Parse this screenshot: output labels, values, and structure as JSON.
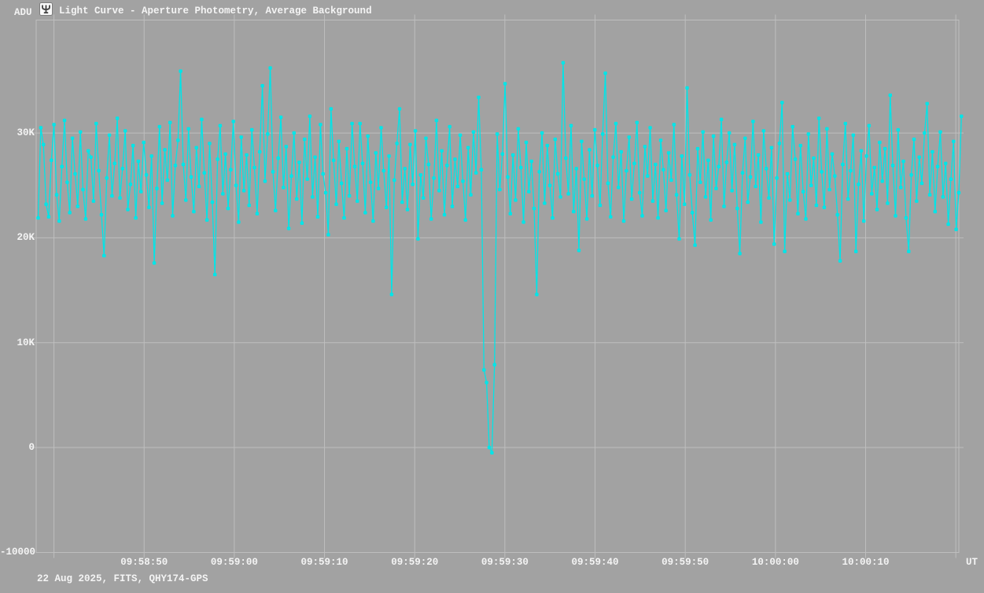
{
  "header": {
    "app_icon": "tangra-app-icon",
    "title": "Light Curve - Aperture Photometry, Average Background"
  },
  "footer": {
    "info": "22 Aug 2025, FITS, QHY174-GPS"
  },
  "colors": {
    "background": "#a2a2a2",
    "grid": "#bebebe",
    "series": "#00e5e8",
    "text": "#f4f4f4"
  },
  "chart_data": {
    "type": "line",
    "title": "Light Curve - Aperture Photometry, Average Background",
    "grid": true,
    "legend": false,
    "x_axis": {
      "unit_label": "UT",
      "ticks": [
        {
          "label": "09:58:50",
          "offset_s": 11.75
        },
        {
          "label": "09:59:00",
          "offset_s": 21.75
        },
        {
          "label": "09:59:10",
          "offset_s": 31.75
        },
        {
          "label": "09:59:20",
          "offset_s": 41.75
        },
        {
          "label": "09:59:30",
          "offset_s": 51.75
        },
        {
          "label": "09:59:40",
          "offset_s": 61.75
        },
        {
          "label": "09:59:50",
          "offset_s": 71.75
        },
        {
          "label": "10:00:00",
          "offset_s": 81.75
        },
        {
          "label": "10:00:10",
          "offset_s": 91.75
        }
      ],
      "unlabeled_gridline_offsets_s": [
        1.75,
        101.75
      ],
      "span_s": 102.5
    },
    "y_axis": {
      "unit_label": "ADU",
      "ticks": [
        {
          "label": "30K",
          "value_kadu": 30
        },
        {
          "label": "20K",
          "value_kadu": 20
        },
        {
          "label": "10K",
          "value_kadu": 10
        },
        {
          "label": "0",
          "value_kadu": 0
        },
        {
          "label": "-10000",
          "value_kadu": -10
        }
      ],
      "range_kadu": [
        -10,
        40.8
      ]
    },
    "series": [
      {
        "name": "aperture-photometry-light-curve",
        "color": "#00e5e8",
        "sample_interval_s": 0.2925,
        "values_kadu": [
          21.9,
          30.5,
          28.9,
          23.2,
          22.0,
          27.4,
          30.8,
          24.1,
          21.6,
          26.8,
          31.2,
          25.3,
          22.4,
          29.5,
          26.1,
          23.0,
          30.1,
          24.6,
          21.8,
          28.3,
          27.7,
          23.5,
          30.9,
          26.4,
          22.2,
          18.3,
          25.7,
          29.8,
          24.0,
          27.1,
          31.4,
          23.8,
          26.6,
          30.2,
          22.7,
          25.1,
          28.8,
          21.9,
          27.3,
          24.4,
          29.1,
          26.0,
          22.9,
          27.8,
          17.6,
          24.7,
          30.6,
          23.3,
          28.4,
          25.5,
          31.0,
          22.1,
          26.9,
          29.3,
          35.9,
          27.0,
          23.6,
          30.4,
          25.8,
          22.5,
          28.6,
          24.9,
          31.3,
          26.2,
          21.7,
          29.0,
          23.4,
          16.5,
          27.5,
          30.7,
          24.2,
          28.0,
          22.8,
          26.5,
          31.1,
          25.0,
          21.5,
          29.6,
          24.5,
          27.9,
          23.1,
          30.3,
          26.7,
          22.3,
          28.2,
          34.5,
          25.4,
          29.9,
          36.2,
          26.3,
          22.6,
          27.6,
          31.5,
          24.8,
          28.7,
          20.9,
          25.9,
          30.0,
          23.7,
          27.2,
          21.4,
          29.4,
          25.6,
          31.6,
          23.9,
          27.7,
          22.0,
          30.8,
          26.1,
          24.3,
          20.3,
          32.3,
          27.4,
          23.2,
          29.2,
          25.2,
          21.9,
          28.5,
          24.0,
          30.9,
          26.8,
          23.5,
          30.9,
          27.1,
          22.4,
          29.7,
          25.3,
          21.6,
          28.1,
          24.7,
          30.5,
          26.4,
          22.9,
          27.8,
          14.6,
          25.5,
          29.0,
          32.3,
          23.4,
          26.6,
          22.7,
          28.9,
          25.1,
          30.2,
          19.9,
          26.0,
          23.8,
          29.5,
          27.0,
          21.8,
          25.7,
          31.2,
          24.5,
          28.3,
          22.2,
          26.9,
          30.6,
          23.0,
          27.5,
          24.9,
          29.8,
          25.4,
          21.7,
          28.6,
          24.1,
          30.1,
          26.2,
          33.4,
          26.5,
          7.4,
          6.2,
          0.0,
          -0.5,
          7.9,
          29.9,
          24.6,
          28.0,
          34.7,
          25.8,
          22.3,
          27.9,
          23.6,
          30.4,
          26.7,
          21.5,
          29.1,
          24.4,
          27.3,
          22.8,
          14.6,
          26.3,
          30.0,
          23.3,
          28.8,
          25.0,
          21.9,
          29.4,
          26.1,
          23.9,
          36.7,
          27.6,
          24.2,
          30.7,
          22.5,
          26.6,
          18.8,
          29.2,
          25.6,
          21.8,
          28.4,
          24.0,
          30.3,
          26.9,
          23.1,
          29.9,
          35.7,
          25.2,
          22.0,
          27.7,
          30.9,
          24.8,
          28.2,
          21.6,
          26.4,
          29.6,
          23.7,
          27.1,
          31.0,
          24.3,
          22.1,
          28.7,
          25.9,
          30.5,
          23.5,
          27.0,
          21.9,
          29.3,
          26.5,
          22.6,
          28.1,
          25.5,
          30.8,
          24.1,
          19.9,
          27.8,
          23.2,
          34.3,
          26.0,
          22.4,
          19.3,
          28.5,
          25.3,
          30.1,
          23.9,
          27.4,
          21.7,
          29.7,
          24.7,
          26.8,
          31.3,
          23.0,
          27.2,
          30.0,
          24.5,
          28.9,
          22.8,
          18.5,
          26.2,
          29.5,
          23.4,
          25.8,
          31.1,
          24.9,
          27.9,
          21.5,
          30.2,
          26.6,
          23.8,
          28.6,
          19.4,
          25.7,
          29.0,
          32.9,
          18.7,
          26.1,
          23.6,
          30.6,
          27.5,
          22.3,
          28.8,
          24.4,
          21.8,
          29.9,
          25.0,
          27.6,
          23.1,
          31.4,
          26.3,
          22.9,
          30.4,
          24.6,
          28.0,
          25.9,
          22.2,
          17.8,
          27.0,
          30.9,
          23.7,
          26.4,
          29.8,
          18.7,
          25.1,
          28.3,
          21.6,
          27.8,
          30.7,
          24.2,
          26.7,
          22.7,
          29.1,
          25.4,
          28.5,
          23.3,
          33.6,
          26.9,
          22.1,
          30.3,
          24.8,
          27.3,
          21.9,
          18.7,
          26.0,
          29.4,
          23.5,
          27.7,
          25.2,
          30.0,
          32.8,
          24.1,
          28.2,
          22.5,
          26.8,
          30.1,
          23.9,
          27.1,
          21.3,
          25.6,
          29.2,
          20.8,
          24.3,
          31.6
        ]
      }
    ]
  }
}
